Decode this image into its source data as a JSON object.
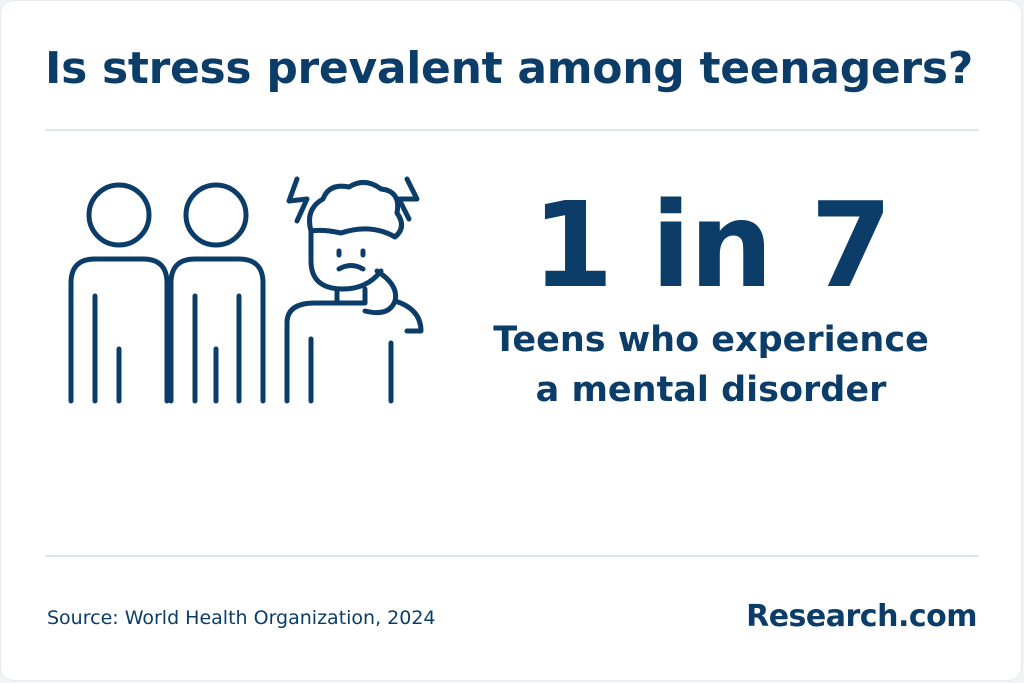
{
  "header": {
    "title": "Is stress prevalent among teenagers?"
  },
  "illustration": {
    "icon": "stressed-teen-group-icon"
  },
  "stat": {
    "value": "1 in 7",
    "caption": "Teens who experience a mental disorder"
  },
  "footer": {
    "source": "Source: World Health Organization, 2024",
    "brand": "Research.com"
  },
  "colors": {
    "primary": "#0b3d68",
    "divider": "#dde6ef",
    "background": "#ffffff"
  }
}
